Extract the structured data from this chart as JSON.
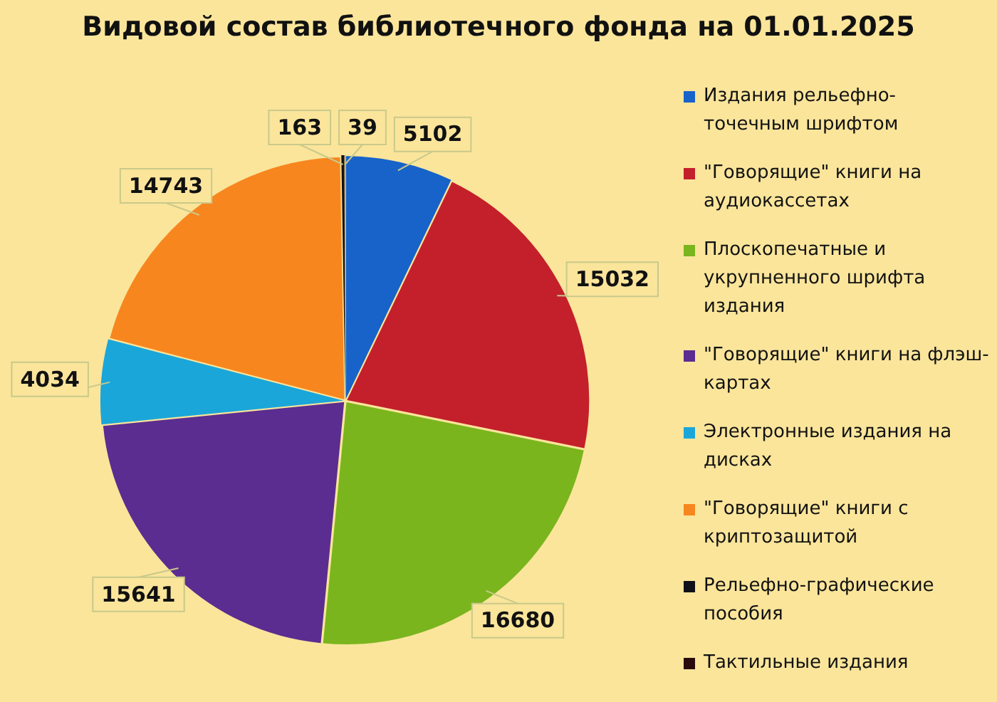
{
  "chart_data": {
    "type": "pie",
    "title": "Видовой состав библиотечного фонда на 01.01.2025",
    "categories": [
      "Издания рельефно-точечным шрифтом",
      "\"Говорящие\" книги на аудиокассетах",
      "Плоскопечатные и укрупненного шрифта издания",
      "\"Говорящие\" книги на флэш-картах",
      "Электронные издания на дисках",
      "\"Говорящие\" книги с криптозащитой",
      "Рельефно-графические пособия",
      "Тактильные издания"
    ],
    "values": [
      5102,
      15032,
      16680,
      15641,
      4034,
      14743,
      163,
      39
    ],
    "colors": [
      "#1763c9",
      "#c3202b",
      "#7ab51d",
      "#5b2d90",
      "#1ba6d9",
      "#f7861f",
      "#101018",
      "#2a0b0b"
    ],
    "data_labels": true,
    "legend": "right"
  }
}
